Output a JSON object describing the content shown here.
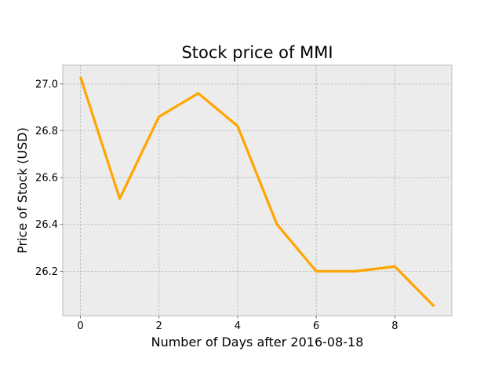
{
  "chart_data": {
    "type": "line",
    "title": "Stock price of MMI",
    "xlabel": "Number of Days after 2016-08-18",
    "ylabel": "Price of Stock (USD)",
    "x": [
      0,
      1,
      2,
      3,
      4,
      5,
      6,
      7,
      8,
      9
    ],
    "series": [
      {
        "values": [
          27.03,
          26.51,
          26.86,
          26.96,
          26.82,
          26.4,
          26.2,
          26.2,
          26.22,
          26.05
        ]
      }
    ],
    "xlim": [
      -0.45,
      9.45
    ],
    "ylim": [
      26.01,
      27.08
    ],
    "xticks": [
      0,
      2,
      4,
      6,
      8
    ],
    "xtick_labels": [
      "0",
      "2",
      "4",
      "6",
      "8"
    ],
    "yticks": [
      26.2,
      26.4,
      26.6,
      26.8,
      27.0
    ],
    "ytick_labels": [
      "26.2",
      "26.4",
      "26.6",
      "26.8",
      "27.0"
    ],
    "grid": true,
    "line_color": "#ffa500",
    "plot_background": "#ececec",
    "grid_color": "#b0b0b0"
  }
}
